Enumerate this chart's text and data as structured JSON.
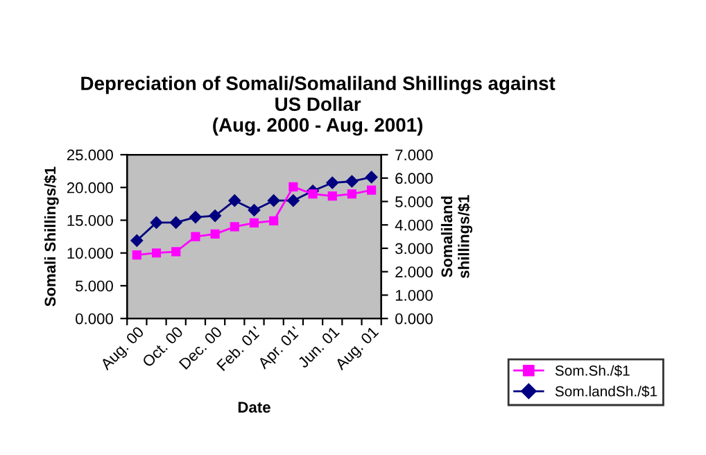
{
  "chart_data": {
    "type": "line",
    "title": "Depreciation of Somali/Somaliland Shillings against\nUS Dollar\n(Aug. 2000 - Aug. 2001)",
    "xlabel": "Date",
    "ylabel": "Somali Shillings/$1",
    "y2label": "Somaliland\nshillings/$1",
    "categories": [
      "Aug. 00",
      null,
      "Oct. 00",
      null,
      "Dec. 00",
      null,
      "Feb. 01'",
      null,
      "Apr. 01'",
      null,
      "Jun. 01",
      null,
      "Aug. 01"
    ],
    "series": [
      {
        "name": "Som.Sh./$1",
        "color": "#ff00ff",
        "marker": "square",
        "values": [
          9.7,
          10.0,
          10.2,
          12.5,
          12.9,
          14.0,
          14.6,
          14.9,
          20.1,
          19.0,
          18.7,
          19.0,
          19.6
        ]
      },
      {
        "name": "Som.landSh./$1",
        "color": "#000080",
        "marker": "diamond",
        "axis": "y2",
        "values": [
          3.33,
          4.1,
          4.1,
          4.33,
          4.39,
          5.04,
          4.63,
          5.04,
          5.04,
          5.45,
          5.8,
          5.86,
          6.04
        ]
      }
    ],
    "ylim": [
      0,
      25
    ],
    "yticks": [
      {
        "value": 0,
        "label": "0.000"
      },
      {
        "value": 5,
        "label": "5.000"
      },
      {
        "value": 10,
        "label": "10.000"
      },
      {
        "value": 15,
        "label": "15.000"
      },
      {
        "value": 20,
        "label": "20.000"
      },
      {
        "value": 25,
        "label": "25.000"
      }
    ],
    "y2lim": [
      0,
      7
    ],
    "y2ticks": [
      {
        "value": 0,
        "label": "0.000"
      },
      {
        "value": 1,
        "label": "1.000"
      },
      {
        "value": 2,
        "label": "2.000"
      },
      {
        "value": 3,
        "label": "3.000"
      },
      {
        "value": 4,
        "label": "4.000"
      },
      {
        "value": 5,
        "label": "5.000"
      },
      {
        "value": 6,
        "label": "6.000"
      },
      {
        "value": 7,
        "label": "7.000"
      }
    ],
    "grid": false,
    "legend": "right"
  }
}
